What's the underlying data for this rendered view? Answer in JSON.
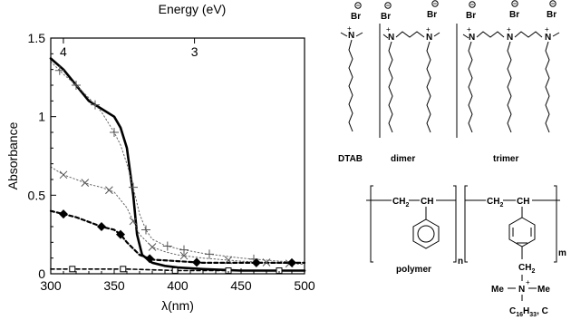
{
  "chart_data": {
    "type": "line",
    "top_axis": {
      "label": "Energy (eV)",
      "ticks": [
        {
          "value_ev": 4,
          "label": "4"
        },
        {
          "value_ev": 3,
          "label": "3"
        }
      ]
    },
    "xlabel": "λ(nm)",
    "ylabel": "Absorbance",
    "xlim": [
      300,
      500
    ],
    "ylim": [
      0,
      1.5
    ],
    "x_ticks": [
      "300",
      "350",
      "400",
      "450",
      "500"
    ],
    "y_ticks": [
      "0",
      "0.5",
      "1",
      "1.5"
    ],
    "grid": false,
    "series": [
      {
        "style": "solid-thick",
        "color": "#000000",
        "x": [
          300,
          310,
          320,
          330,
          340,
          350,
          355,
          360,
          365,
          368,
          372,
          380,
          390,
          400,
          420,
          450,
          500
        ],
        "y": [
          1.37,
          1.3,
          1.2,
          1.1,
          1.05,
          1.0,
          0.93,
          0.8,
          0.5,
          0.25,
          0.12,
          0.07,
          0.05,
          0.04,
          0.03,
          0.02,
          0.02
        ]
      },
      {
        "style": "dotted-plus",
        "color": "#666666",
        "marker": "+",
        "x": [
          300,
          310,
          320,
          330,
          340,
          350,
          355,
          360,
          365,
          370,
          375,
          380,
          390,
          400,
          420,
          450,
          480,
          500
        ],
        "y": [
          1.35,
          1.27,
          1.2,
          1.12,
          1.03,
          0.9,
          0.82,
          0.7,
          0.55,
          0.38,
          0.28,
          0.22,
          0.18,
          0.16,
          0.13,
          0.1,
          0.08,
          0.07
        ],
        "marker_x": [
          307,
          320,
          335,
          350,
          365,
          375,
          392,
          405,
          425,
          460
        ]
      },
      {
        "style": "dotted-x",
        "color": "#666666",
        "marker": "×",
        "x": [
          300,
          310,
          320,
          330,
          340,
          350,
          360,
          370,
          380,
          390,
          400,
          420,
          450,
          500
        ],
        "y": [
          0.68,
          0.63,
          0.6,
          0.57,
          0.55,
          0.52,
          0.42,
          0.25,
          0.17,
          0.14,
          0.12,
          0.1,
          0.08,
          0.06
        ],
        "marker_x": [
          310,
          327,
          346,
          365,
          380,
          405,
          440,
          470,
          488
        ]
      },
      {
        "style": "dashed-diamond",
        "color": "#000000",
        "marker": "diamond",
        "x": [
          300,
          310,
          320,
          330,
          340,
          350,
          355,
          360,
          370,
          380,
          400,
          420,
          450,
          500
        ],
        "y": [
          0.4,
          0.38,
          0.36,
          0.33,
          0.3,
          0.28,
          0.25,
          0.2,
          0.12,
          0.09,
          0.08,
          0.07,
          0.07,
          0.07
        ],
        "marker_x": [
          310,
          340,
          355,
          378,
          415,
          462,
          490
        ]
      },
      {
        "style": "dashed-square",
        "color": "#000000",
        "marker": "square",
        "x": [
          300,
          350,
          360,
          400,
          450,
          500
        ],
        "y": [
          0.03,
          0.03,
          0.03,
          0.02,
          0.02,
          0.02
        ],
        "marker_x": [
          317,
          357,
          398,
          440,
          480
        ]
      }
    ]
  },
  "structures": {
    "bromide": "Br",
    "dtab_label": "DTAB",
    "dimer_label": "dimer",
    "trimer_label": "trimer",
    "polymer_label": "polymer",
    "ch2": "CH",
    "ch2_sub": "2",
    "ch": "CH",
    "n_sub": "n",
    "m_sub": "m",
    "nitrogen": "N",
    "methyl": "Me",
    "tail_c": "C",
    "tail_sub1": "16",
    "tail_h": "H",
    "tail_sub2": "33",
    "tail_suffix": ", C"
  }
}
